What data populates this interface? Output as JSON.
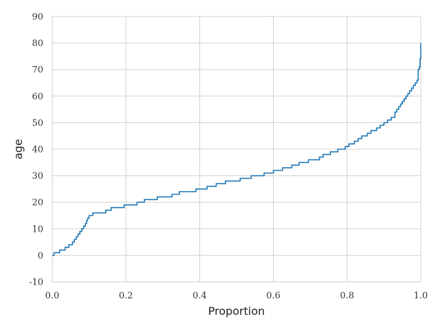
{
  "chart_data": {
    "type": "line",
    "subtype": "ecdf-step",
    "title": "",
    "xlabel": "Proportion",
    "ylabel": "age",
    "xlim": [
      0.0,
      1.0
    ],
    "ylim": [
      -10,
      90
    ],
    "x_ticks": [
      0.0,
      0.2,
      0.4,
      0.6,
      0.8,
      1.0
    ],
    "x_tick_labels": [
      "0.0",
      "0.2",
      "0.4",
      "0.6",
      "0.8",
      "1.0"
    ],
    "y_ticks": [
      -10,
      0,
      10,
      20,
      30,
      40,
      50,
      60,
      70,
      80,
      90
    ],
    "y_tick_labels": [
      "-10",
      "0",
      "10",
      "20",
      "30",
      "40",
      "50",
      "60",
      "70",
      "80",
      "90"
    ],
    "grid": true,
    "series": [
      {
        "color": "#1f77b4",
        "x": [
          0.0,
          0.005,
          0.02,
          0.035,
          0.045,
          0.055,
          0.06,
          0.065,
          0.07,
          0.075,
          0.08,
          0.085,
          0.09,
          0.093,
          0.096,
          0.1,
          0.105,
          0.11,
          0.115,
          0.12,
          0.145,
          0.16,
          0.195,
          0.23,
          0.25,
          0.285,
          0.325,
          0.345,
          0.39,
          0.42,
          0.445,
          0.47,
          0.51,
          0.54,
          0.575,
          0.6,
          0.625,
          0.65,
          0.67,
          0.695,
          0.725,
          0.735,
          0.755,
          0.775,
          0.795,
          0.805,
          0.82,
          0.83,
          0.84,
          0.855,
          0.865,
          0.88,
          0.89,
          0.9,
          0.91,
          0.92,
          0.93,
          0.935,
          0.94,
          0.945,
          0.95,
          0.955,
          0.96,
          0.965,
          0.97,
          0.975,
          0.98,
          0.985,
          0.99,
          0.993,
          0.996,
          0.998,
          1.0
        ],
        "y": [
          0,
          1,
          2,
          3,
          4,
          5,
          6,
          7,
          8,
          9,
          10,
          11,
          12,
          13,
          14,
          15,
          15,
          16,
          16,
          16,
          17,
          18,
          19,
          20,
          21,
          22,
          23,
          24,
          25,
          26,
          27,
          28,
          29,
          30,
          31,
          32,
          33,
          34,
          35,
          36,
          37,
          38,
          39,
          40,
          41,
          42,
          43,
          44,
          45,
          46,
          47,
          48,
          49,
          50,
          51,
          52,
          54,
          55,
          56,
          57,
          58,
          59,
          60,
          61,
          62,
          63,
          64,
          65,
          66,
          70,
          71,
          74,
          80
        ]
      }
    ]
  }
}
